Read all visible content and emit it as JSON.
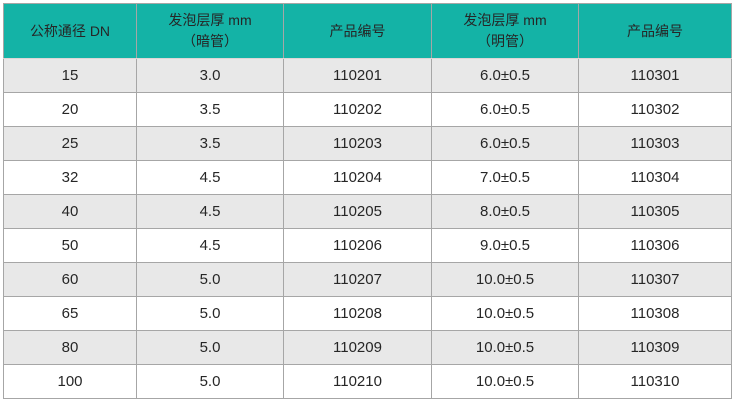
{
  "colors": {
    "header_bg": "#14b3a6",
    "row_alt_bg": "#e8e8e8",
    "row_bg": "#ffffff",
    "border": "#a6a6a6",
    "border_outer": "#a8a8a8",
    "header_bottom_border": "#ded6d6",
    "text": "#262626"
  },
  "table": {
    "headers": [
      "公称通径 DN",
      "发泡层厚 mm\n（暗管）",
      "产品编号",
      "发泡层厚 mm\n（明管）",
      "产品编号"
    ],
    "rows": [
      [
        "15",
        "3.0",
        "110201",
        "6.0±0.5",
        "110301"
      ],
      [
        "20",
        "3.5",
        "110202",
        "6.0±0.5",
        "110302"
      ],
      [
        "25",
        "3.5",
        "110203",
        "6.0±0.5",
        "110303"
      ],
      [
        "32",
        "4.5",
        "110204",
        "7.0±0.5",
        "110304"
      ],
      [
        "40",
        "4.5",
        "110205",
        "8.0±0.5",
        "110305"
      ],
      [
        "50",
        "4.5",
        "110206",
        "9.0±0.5",
        "110306"
      ],
      [
        "60",
        "5.0",
        "110207",
        "10.0±0.5",
        "110307"
      ],
      [
        "65",
        "5.0",
        "110208",
        "10.0±0.5",
        "110308"
      ],
      [
        "80",
        "5.0",
        "110209",
        "10.0±0.5",
        "110309"
      ],
      [
        "100",
        "5.0",
        "110210",
        "10.0±0.5",
        "110310"
      ]
    ]
  }
}
